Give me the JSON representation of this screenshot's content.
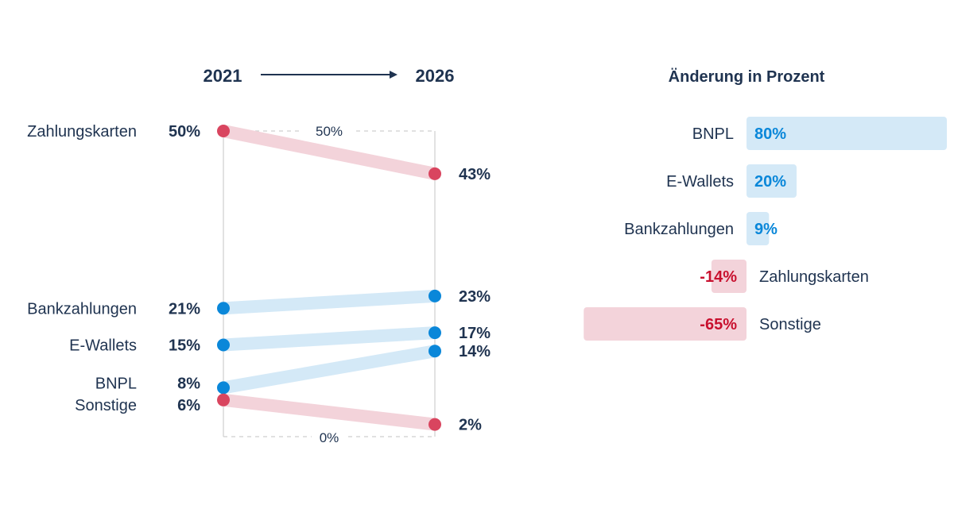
{
  "colors": {
    "text": "#1f3350",
    "increase_dot": "#0a87d9",
    "increase_band": "#d4e9f7",
    "decrease_dot": "#d9455f",
    "decrease_band": "#f3d3da",
    "increase_text": "#0a87d9",
    "decrease_text": "#c8102e",
    "axis": "#cccccc"
  },
  "chart_data": [
    {
      "type": "slope",
      "x": [
        "2021",
        "2026"
      ],
      "y_ticks": [
        "50%",
        "0%"
      ],
      "ylim": [
        0,
        50
      ],
      "series": [
        {
          "name": "Zahlungskarten",
          "values": [
            50,
            43
          ],
          "labels": [
            "50%",
            "43%"
          ],
          "trend": "down"
        },
        {
          "name": "Bankzahlungen",
          "values": [
            21,
            23
          ],
          "labels": [
            "21%",
            "23%"
          ],
          "trend": "up"
        },
        {
          "name": "E-Wallets",
          "values": [
            15,
            17
          ],
          "labels": [
            "15%",
            "17%"
          ],
          "trend": "up"
        },
        {
          "name": "BNPL",
          "values": [
            8,
            14
          ],
          "labels": [
            "8%",
            "14%"
          ],
          "trend": "up"
        },
        {
          "name": "Sonstige",
          "values": [
            6,
            2
          ],
          "labels": [
            "6%",
            "2%"
          ],
          "trend": "down"
        }
      ]
    },
    {
      "type": "bar",
      "orientation": "horizontal-diverging",
      "title": "Änderung in Prozent",
      "categories": [
        "BNPL",
        "E-Wallets",
        "Bankzahlungen",
        "Zahlungskarten",
        "Sonstige"
      ],
      "values": [
        80,
        20,
        9,
        -14,
        -65
      ],
      "labels": [
        "80%",
        "20%",
        "9%",
        "-14%",
        "-65%"
      ]
    }
  ]
}
